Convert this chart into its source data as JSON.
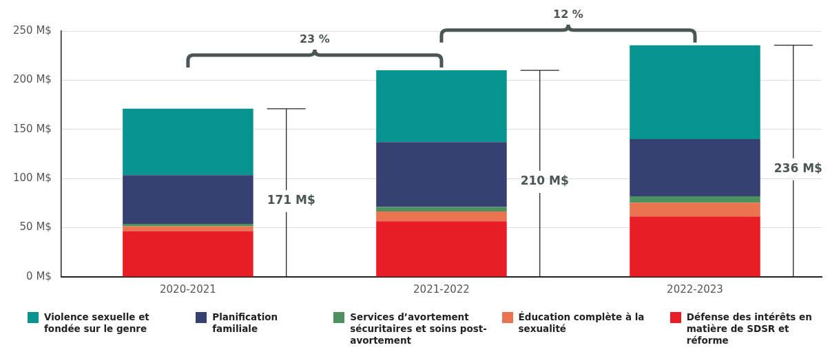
{
  "chart_data": {
    "type": "bar",
    "stacked": true,
    "categories": [
      "2020-2021",
      "2021-2022",
      "2022-2023"
    ],
    "series": [
      {
        "name": "Défense des intérêts en matière de SDSR et réforme",
        "color": "#e91d25",
        "values": [
          46.5,
          56.5,
          61.5
        ]
      },
      {
        "name": "Éducation complète à la sexualité",
        "color": "#ea7350",
        "values": [
          5,
          10,
          14
        ]
      },
      {
        "name": "Services d’avortement sécuritaires et soins post-avortement",
        "color": "#4d9160",
        "values": [
          2.5,
          4.5,
          6.5
        ]
      },
      {
        "name": "Planification familiale",
        "color": "#364171",
        "values": [
          49.5,
          66,
          58
        ]
      },
      {
        "name": "Violence sexuelle et fondée sur le genre",
        "color": "#079491",
        "values": [
          67.5,
          73,
          95.5
        ]
      }
    ],
    "ylim": [
      0,
      250
    ],
    "yticks": [
      {
        "value": 0,
        "label": "0 M$"
      },
      {
        "value": 50,
        "label": "50 M$"
      },
      {
        "value": 100,
        "label": "100 M$"
      },
      {
        "value": 150,
        "label": "150 M$"
      },
      {
        "value": 200,
        "label": "200 M$"
      },
      {
        "value": 250,
        "label": "250 M$"
      }
    ],
    "totals": [
      "171 M$",
      "210 M$",
      "236 M$"
    ],
    "annotations": [
      "23 %",
      "12 %"
    ],
    "grid": "y",
    "legend": "bottom"
  }
}
